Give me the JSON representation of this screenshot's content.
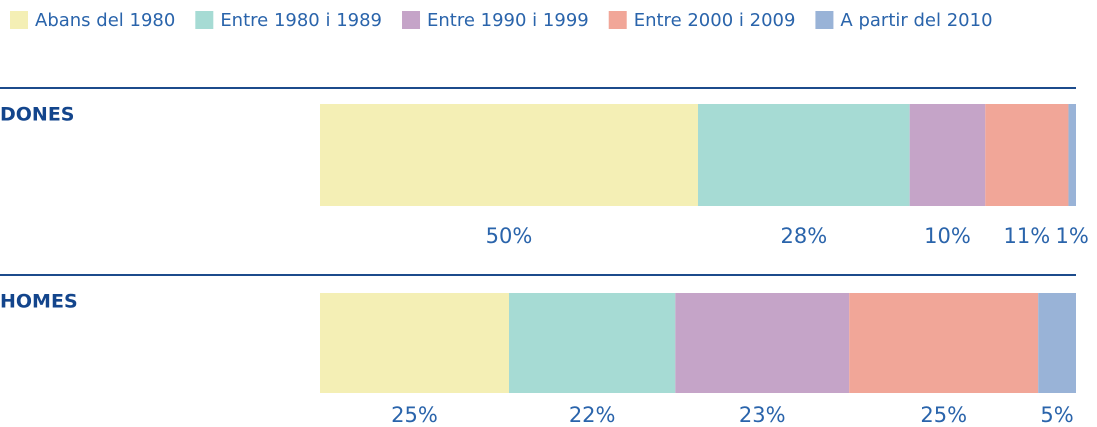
{
  "chart_data": {
    "type": "stacked-bar-horizontal",
    "categories": [
      "DONES",
      "HOMES"
    ],
    "xlim": [
      0,
      100
    ],
    "series": [
      {
        "name": "Abans del 1980",
        "color": "#f4efb5",
        "values": [
          50,
          25
        ],
        "value_labels": [
          "50%",
          "25%"
        ]
      },
      {
        "name": "Entre 1980 i 1989",
        "color": "#a6dbd4",
        "values": [
          28,
          22
        ],
        "value_labels": [
          "28%",
          "22%"
        ]
      },
      {
        "name": "Entre 1990 i 1999",
        "color": "#c5a4c8",
        "values": [
          10,
          23
        ],
        "value_labels": [
          "10%",
          "23%"
        ]
      },
      {
        "name": "Entre 2000 i 2009",
        "color": "#f1a698",
        "values": [
          11,
          25
        ],
        "value_labels": [
          "11%",
          "25%"
        ]
      },
      {
        "name": "A partir del 2010",
        "color": "#99b3d7",
        "values": [
          1,
          5
        ],
        "value_labels": [
          "1%",
          "5%"
        ]
      }
    ]
  }
}
